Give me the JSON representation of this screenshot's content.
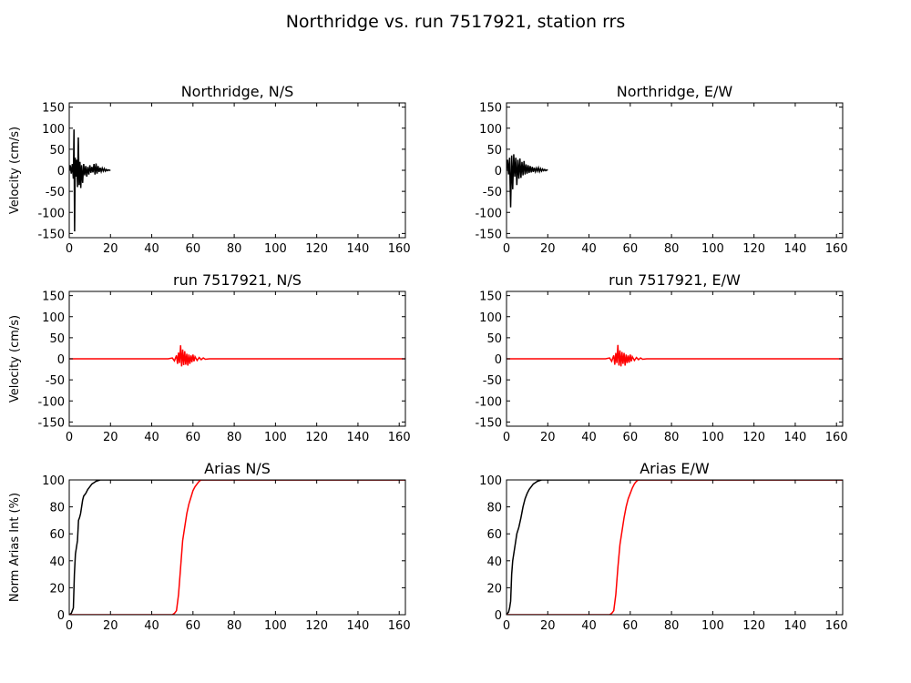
{
  "suptitle": "Northridge vs. run 7517921, station rrs",
  "chart_data": [
    {
      "type": "line",
      "title": "Northridge, N/S",
      "xlabel": "",
      "ylabel": "Velocity (cm/s)",
      "xlim": [
        0,
        163
      ],
      "ylim": [
        -160,
        160
      ],
      "xticks": [
        0,
        20,
        40,
        60,
        80,
        100,
        120,
        140,
        160
      ],
      "yticks": [
        -150,
        -100,
        -50,
        0,
        50,
        100,
        150
      ],
      "color": "#000000",
      "series": [
        {
          "x": [
            0,
            0.5,
            1,
            1.5,
            2,
            2.3,
            2.6,
            2.9,
            3.2,
            3.6,
            4,
            4.4,
            4.8,
            5.2,
            5.6,
            6,
            6.5,
            7,
            7.5,
            8,
            8.5,
            9,
            9.5,
            10,
            10.5,
            11,
            11.5,
            12,
            12.5,
            13,
            13.5,
            14,
            14.5,
            15,
            15.5,
            16,
            16.5,
            17,
            17.5,
            18,
            18.5,
            19,
            19.5,
            20
          ],
          "y": [
            0,
            12,
            -8,
            15,
            -20,
            97,
            -145,
            30,
            -15,
            25,
            -40,
            78,
            -35,
            20,
            -42,
            12,
            -30,
            15,
            -12,
            10,
            -15,
            8,
            -10,
            12,
            -6,
            8,
            -5,
            15,
            -10,
            16,
            -8,
            10,
            -4,
            6,
            -3,
            5,
            -2,
            4,
            -2,
            2,
            -1,
            1,
            0,
            0
          ]
        }
      ]
    },
    {
      "type": "line",
      "title": "Northridge, E/W",
      "xlabel": "",
      "ylabel": "",
      "xlim": [
        0,
        163
      ],
      "ylim": [
        -160,
        160
      ],
      "xticks": [
        0,
        20,
        40,
        60,
        80,
        100,
        120,
        140,
        160
      ],
      "yticks": [
        -150,
        -100,
        -50,
        0,
        50,
        100,
        150
      ],
      "color": "#000000",
      "series": [
        {
          "x": [
            0,
            0.5,
            1,
            1.5,
            2,
            2.5,
            3,
            3.5,
            4,
            4.5,
            5,
            5.5,
            6,
            6.5,
            7,
            7.5,
            8,
            8.5,
            9,
            9.5,
            10,
            10.5,
            11,
            11.5,
            12,
            12.5,
            13,
            13.5,
            14,
            14.5,
            15,
            15.5,
            16,
            16.5,
            17,
            17.5,
            18,
            18.5,
            19,
            19.5,
            20
          ],
          "y": [
            0,
            25,
            -10,
            30,
            -88,
            35,
            -45,
            38,
            -15,
            30,
            -35,
            25,
            -20,
            28,
            -18,
            20,
            -12,
            22,
            -10,
            14,
            -8,
            12,
            -6,
            10,
            -5,
            8,
            -4,
            6,
            -3,
            5,
            -2,
            6,
            -3,
            4,
            -2,
            3,
            -1,
            2,
            -1,
            1,
            0
          ]
        }
      ]
    },
    {
      "type": "line",
      "title": "run 7517921, N/S",
      "xlabel": "",
      "ylabel": "Velocity (cm/s)",
      "xlim": [
        0,
        163
      ],
      "ylim": [
        -160,
        160
      ],
      "xticks": [
        0,
        20,
        40,
        60,
        80,
        100,
        120,
        140,
        160
      ],
      "yticks": [
        -150,
        -100,
        -50,
        0,
        50,
        100,
        150
      ],
      "color": "#ff0000",
      "series": [
        {
          "x": [
            0,
            48,
            50,
            51,
            52,
            52.5,
            53,
            53.5,
            54,
            54.5,
            55,
            55.5,
            56,
            56.5,
            57,
            57.5,
            58,
            58.5,
            59,
            59.5,
            60,
            60.5,
            61,
            62,
            63,
            64,
            65,
            66,
            68,
            70,
            163
          ],
          "y": [
            0,
            0,
            2,
            -5,
            8,
            -12,
            15,
            -10,
            32,
            -18,
            22,
            -15,
            18,
            -14,
            12,
            -16,
            10,
            -12,
            8,
            -8,
            10,
            -6,
            5,
            -4,
            3,
            -2,
            2,
            -1,
            0,
            0,
            0
          ]
        }
      ]
    },
    {
      "type": "line",
      "title": "run 7517921, E/W",
      "xlabel": "",
      "ylabel": "",
      "xlim": [
        0,
        163
      ],
      "ylim": [
        -160,
        160
      ],
      "xticks": [
        0,
        20,
        40,
        60,
        80,
        100,
        120,
        140,
        160
      ],
      "yticks": [
        -150,
        -100,
        -50,
        0,
        50,
        100,
        150
      ],
      "color": "#ff0000",
      "series": [
        {
          "x": [
            0,
            48,
            50,
            51,
            52,
            52.5,
            53,
            53.5,
            54,
            54.5,
            55,
            55.5,
            56,
            56.5,
            57,
            57.5,
            58,
            58.5,
            59,
            59.5,
            60,
            60.5,
            61,
            62,
            63,
            64,
            65,
            66,
            68,
            70,
            163
          ],
          "y": [
            0,
            0,
            2,
            -6,
            8,
            -14,
            14,
            -10,
            33,
            -16,
            20,
            -18,
            16,
            -12,
            14,
            -16,
            10,
            -10,
            8,
            -9,
            10,
            -6,
            5,
            -4,
            3,
            -2,
            2,
            -1,
            0,
            0,
            0
          ]
        }
      ]
    },
    {
      "type": "line",
      "title": "Arias N/S",
      "xlabel": "",
      "ylabel": "Norm Arias Int (%)",
      "xlim": [
        0,
        163
      ],
      "ylim": [
        0,
        100
      ],
      "xticks": [
        0,
        20,
        40,
        60,
        80,
        100,
        120,
        140,
        160
      ],
      "yticks": [
        0,
        20,
        40,
        60,
        80,
        100
      ],
      "series": [
        {
          "color": "#000000",
          "x": [
            0,
            1,
            1.5,
            2,
            2.5,
            3,
            3.5,
            4,
            4.5,
            5,
            5.5,
            6,
            6.5,
            7,
            8,
            9,
            10,
            11,
            12,
            13,
            14,
            15,
            16,
            17,
            18,
            19,
            20,
            163
          ],
          "y": [
            0,
            1,
            3,
            5,
            30,
            45,
            50,
            55,
            70,
            72,
            75,
            80,
            85,
            88,
            90,
            93,
            95,
            97,
            98,
            99,
            99.5,
            100,
            100,
            100,
            100,
            100,
            100,
            100
          ]
        },
        {
          "color": "#ff0000",
          "x": [
            0,
            48,
            50,
            51,
            52,
            53,
            54,
            55,
            56,
            57,
            58,
            59,
            60,
            61,
            62,
            63,
            64,
            65,
            163
          ],
          "y": [
            0,
            0,
            0,
            1,
            3,
            15,
            35,
            55,
            65,
            75,
            82,
            87,
            92,
            95,
            97,
            99,
            100,
            100,
            100
          ]
        }
      ]
    },
    {
      "type": "line",
      "title": "Arias E/W",
      "xlabel": "",
      "ylabel": "",
      "xlim": [
        0,
        163
      ],
      "ylim": [
        0,
        100
      ],
      "xticks": [
        0,
        20,
        40,
        60,
        80,
        100,
        120,
        140,
        160
      ],
      "yticks": [
        0,
        20,
        40,
        60,
        80,
        100
      ],
      "series": [
        {
          "color": "#000000",
          "x": [
            0,
            1,
            1.5,
            2,
            2.5,
            3,
            4,
            5,
            6,
            7,
            8,
            9,
            10,
            11,
            12,
            13,
            14,
            15,
            16,
            17,
            18,
            19,
            20,
            163
          ],
          "y": [
            0,
            2,
            5,
            10,
            30,
            40,
            50,
            60,
            65,
            72,
            80,
            86,
            90,
            93,
            95,
            97,
            98,
            99,
            99.5,
            100,
            100,
            100,
            100,
            100
          ]
        },
        {
          "color": "#ff0000",
          "x": [
            0,
            48,
            50,
            51,
            52,
            53,
            54,
            55,
            56,
            57,
            58,
            59,
            60,
            61,
            62,
            63,
            64,
            65,
            163
          ],
          "y": [
            0,
            0,
            0,
            1,
            3,
            15,
            35,
            52,
            62,
            72,
            80,
            86,
            90,
            94,
            97,
            99,
            100,
            100,
            100
          ]
        }
      ]
    }
  ]
}
